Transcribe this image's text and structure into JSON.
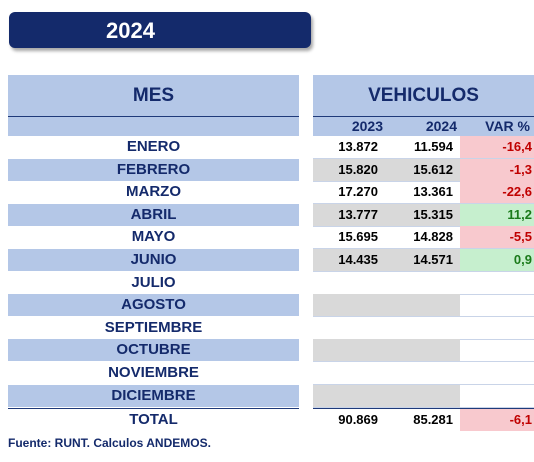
{
  "title": "2024",
  "headers": {
    "month": "MES",
    "vehicles": "VEHICULOS",
    "year_a": "2023",
    "year_b": "2024",
    "variation": "VAR %"
  },
  "rows": [
    {
      "month": "ENERO",
      "v2023": "13.872",
      "v2024": "11.594",
      "var": "-16,4"
    },
    {
      "month": "FEBRERO",
      "v2023": "15.820",
      "v2024": "15.612",
      "var": "-1,3"
    },
    {
      "month": "MARZO",
      "v2023": "17.270",
      "v2024": "13.361",
      "var": "-22,6"
    },
    {
      "month": "ABRIL",
      "v2023": "13.777",
      "v2024": "15.315",
      "var": "11,2"
    },
    {
      "month": "MAYO",
      "v2023": "15.695",
      "v2024": "14.828",
      "var": "-5,5"
    },
    {
      "month": "JUNIO",
      "v2023": "14.435",
      "v2024": "14.571",
      "var": "0,9"
    },
    {
      "month": "JULIO",
      "v2023": "",
      "v2024": "",
      "var": ""
    },
    {
      "month": "AGOSTO",
      "v2023": "",
      "v2024": "",
      "var": ""
    },
    {
      "month": "SEPTIEMBRE",
      "v2023": "",
      "v2024": "",
      "var": ""
    },
    {
      "month": "OCTUBRE",
      "v2023": "",
      "v2024": "",
      "var": ""
    },
    {
      "month": "NOVIEMBRE",
      "v2023": "",
      "v2024": "",
      "var": ""
    },
    {
      "month": "DICIEMBRE",
      "v2023": "",
      "v2024": "",
      "var": ""
    }
  ],
  "total": {
    "label": "TOTAL",
    "v2023": "90.869",
    "v2024": "85.281",
    "var": "-6,1"
  },
  "footer": "Fuente: RUNT. Calculos ANDEMOS.",
  "colors": {
    "title_bg": "#142a6b",
    "header_band": "#b4c7e7",
    "negative_bg": "#f8c9ce",
    "negative_text": "#c00000",
    "positive_bg": "#c6efce",
    "positive_text": "#1a7a1a"
  }
}
